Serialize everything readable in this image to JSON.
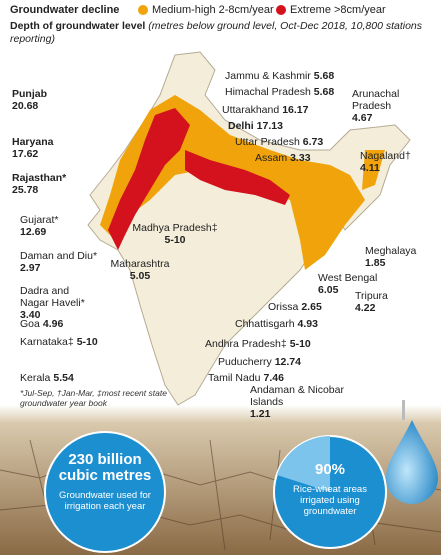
{
  "legend": {
    "title": "Groundwater decline",
    "items": [
      {
        "label": "Medium-high 2-8cm/year",
        "color": "#f0a30a"
      },
      {
        "label": "Extreme >8cm/year",
        "color": "#d3121d"
      }
    ]
  },
  "subtitle": {
    "bold": "Depth of groundwater level",
    "italic": "(metres below ground level, Oct-Dec 2018, 10,800 stations reporting)"
  },
  "states": [
    {
      "name": "Jammu & Kashmir",
      "value": 5.68
    },
    {
      "name": "Himachal Pradesh",
      "value": 5.68
    },
    {
      "name": "Punjab",
      "value": 20.68
    },
    {
      "name": "Uttarakhand",
      "value": 16.17
    },
    {
      "name": "Haryana",
      "value": 17.62
    },
    {
      "name": "Delhi",
      "value": 17.13
    },
    {
      "name": "Uttar Pradesh",
      "value": 6.73
    },
    {
      "name": "Rajasthan*",
      "value": 25.78
    },
    {
      "name": "Assam",
      "value": 3.33
    },
    {
      "name": "Arunachal Pradesh",
      "value": 4.67
    },
    {
      "name": "Nagaland†",
      "value": 4.11
    },
    {
      "name": "Gujarat*",
      "value": 12.69
    },
    {
      "name": "Madhya Pradesh‡",
      "value": "5-10"
    },
    {
      "name": "Daman and Diu*",
      "value": 2.97
    },
    {
      "name": "Maharashtra",
      "value": 5.05
    },
    {
      "name": "Dadra and Nagar Haveli*",
      "value": "3.40"
    },
    {
      "name": "Meghalaya",
      "value": 1.85
    },
    {
      "name": "West Bengal",
      "value": 6.05
    },
    {
      "name": "Tripura",
      "value": 4.22
    },
    {
      "name": "Orissa",
      "value": 2.65
    },
    {
      "name": "Goa",
      "value": 4.96
    },
    {
      "name": "Chhattisgarh",
      "value": 4.93
    },
    {
      "name": "Karnataka‡",
      "value": "5-10"
    },
    {
      "name": "Andhra Pradesh‡",
      "value": "5-10"
    },
    {
      "name": "Puducherry",
      "value": 12.74
    },
    {
      "name": "Kerala",
      "value": 5.54
    },
    {
      "name": "Tamil Nadu",
      "value": 7.46
    },
    {
      "name": "Andaman & Nicobar Islands",
      "value": 1.21
    }
  ],
  "footnote": "*Jul-Sep, †Jan-Mar, ‡most recent state groundwater year book",
  "stats": [
    {
      "value": "230 billion cubic metres",
      "text": "Groundwater used for irrigation each year"
    },
    {
      "value": "90%",
      "text": "Rice-wheat areas irrigated using groundwater"
    }
  ]
}
